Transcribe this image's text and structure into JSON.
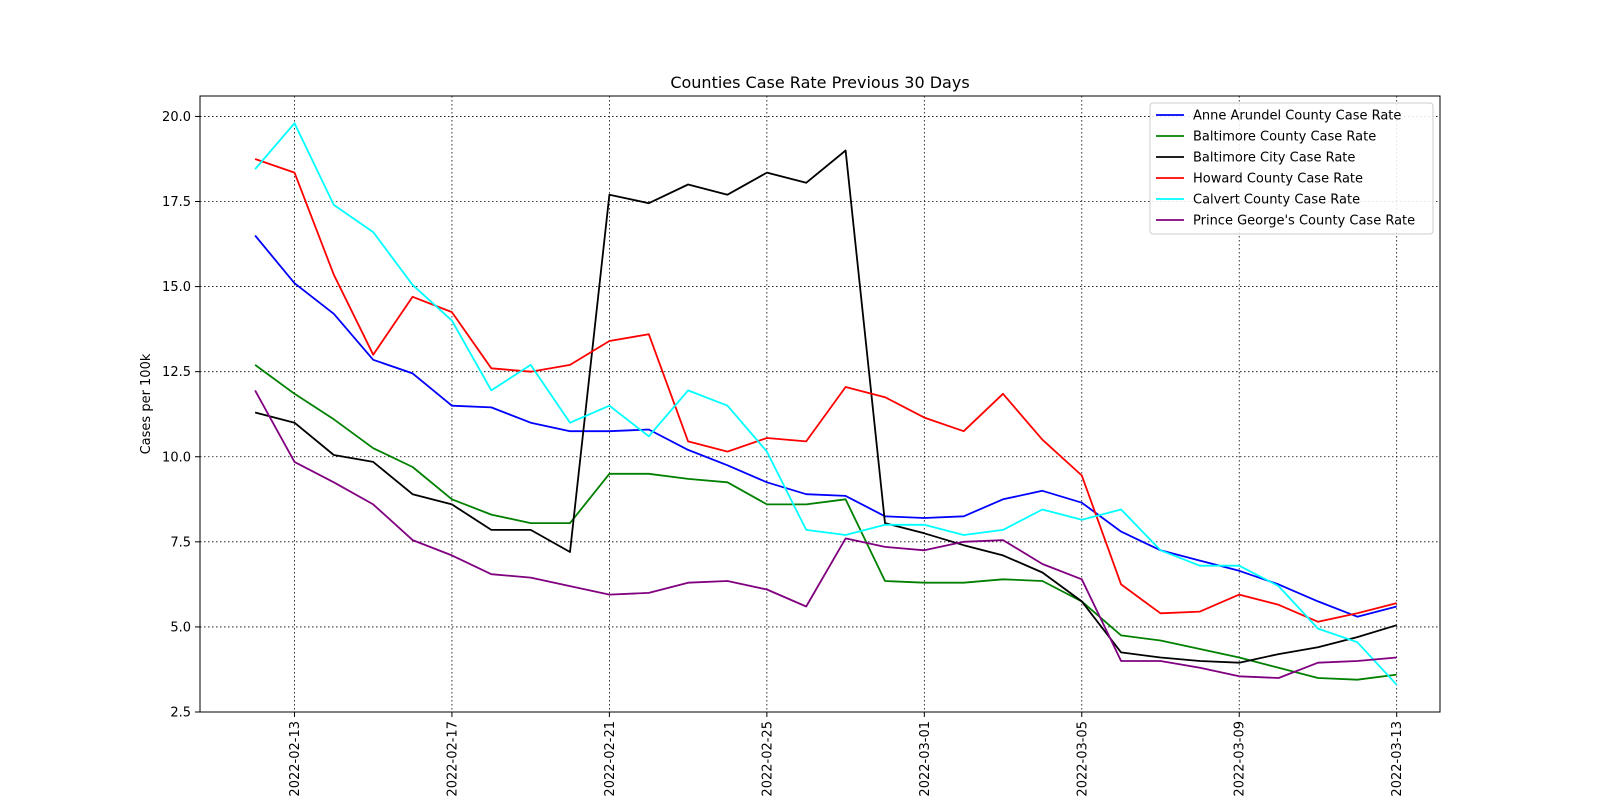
{
  "chart_data": {
    "type": "line",
    "title": "Counties Case Rate Previous 30 Days",
    "xlabel": "",
    "ylabel": "Cases per 100k",
    "x": [
      "2022-02-12",
      "2022-02-13",
      "2022-02-14",
      "2022-02-15",
      "2022-02-16",
      "2022-02-17",
      "2022-02-18",
      "2022-02-19",
      "2022-02-20",
      "2022-02-21",
      "2022-02-22",
      "2022-02-23",
      "2022-02-24",
      "2022-02-25",
      "2022-02-26",
      "2022-02-27",
      "2022-02-28",
      "2022-03-01",
      "2022-03-02",
      "2022-03-03",
      "2022-03-04",
      "2022-03-05",
      "2022-03-06",
      "2022-03-07",
      "2022-03-08",
      "2022-03-09",
      "2022-03-10",
      "2022-03-11",
      "2022-03-12",
      "2022-03-13"
    ],
    "x_ticks": [
      "2022-02-13",
      "2022-02-17",
      "2022-02-21",
      "2022-02-25",
      "2022-03-01",
      "2022-03-05",
      "2022-03-09",
      "2022-03-13"
    ],
    "x_range": [
      "2022-02-10.6",
      "2022-03-14.1"
    ],
    "ylim": [
      2.5,
      20.6
    ],
    "y_ticks": [
      "2.5",
      "5.0",
      "7.5",
      "10.0",
      "12.5",
      "15.0",
      "17.5",
      "20.0"
    ],
    "grid": true,
    "grid_style": "dotted",
    "legend_position": "top-right",
    "series": [
      {
        "name": "Anne Arundel County Case Rate",
        "color": "#0000ff",
        "values": [
          16.5,
          15.1,
          14.2,
          12.85,
          12.45,
          11.5,
          11.45,
          11.0,
          10.75,
          10.75,
          10.8,
          10.2,
          9.75,
          9.25,
          8.9,
          8.85,
          8.25,
          8.2,
          8.25,
          8.75,
          9.0,
          8.65,
          7.8,
          7.25,
          6.95,
          6.65,
          6.25,
          5.75,
          5.3,
          5.6
        ]
      },
      {
        "name": "Baltimore County Case Rate",
        "color": "#008000",
        "values": [
          12.7,
          11.85,
          11.1,
          10.25,
          9.7,
          8.75,
          8.3,
          8.05,
          8.05,
          9.5,
          9.5,
          9.35,
          9.25,
          8.6,
          8.6,
          8.75,
          6.35,
          6.3,
          6.3,
          6.4,
          6.35,
          5.75,
          4.75,
          4.6,
          4.35,
          4.1,
          3.8,
          3.5,
          3.45,
          3.6
        ]
      },
      {
        "name": "Baltimore City Case Rate",
        "color": "#000000",
        "values": [
          11.3,
          11.0,
          10.05,
          9.85,
          8.9,
          8.6,
          7.85,
          7.85,
          7.2,
          17.7,
          17.45,
          18.0,
          17.7,
          18.35,
          18.05,
          19.0,
          8.05,
          7.75,
          7.4,
          7.1,
          6.6,
          5.75,
          4.25,
          4.1,
          4.0,
          3.95,
          4.2,
          4.4,
          4.7,
          5.05
        ]
      },
      {
        "name": "Howard County Case Rate",
        "color": "#ff0000",
        "values": [
          18.75,
          18.35,
          15.35,
          13.0,
          14.7,
          14.25,
          12.6,
          12.5,
          12.7,
          13.4,
          13.6,
          10.45,
          10.15,
          10.55,
          10.45,
          12.05,
          11.75,
          11.15,
          10.75,
          11.85,
          10.5,
          9.45,
          6.25,
          5.4,
          5.45,
          5.95,
          5.65,
          5.15,
          5.4,
          5.7
        ]
      },
      {
        "name": "Calvert County Case Rate",
        "color": "#00ffff",
        "values": [
          18.45,
          19.8,
          17.4,
          16.6,
          15.05,
          14.0,
          11.95,
          12.7,
          11.0,
          11.5,
          10.6,
          11.95,
          11.5,
          10.15,
          7.85,
          7.7,
          8.0,
          8.0,
          7.7,
          7.85,
          8.45,
          8.15,
          8.45,
          7.25,
          6.8,
          6.8,
          6.2,
          4.95,
          4.55,
          3.3
        ]
      },
      {
        "name": "Prince George's County Case Rate",
        "color": "#800080",
        "values": [
          11.95,
          9.85,
          9.25,
          8.6,
          7.55,
          7.1,
          6.55,
          6.45,
          6.2,
          5.95,
          6.0,
          6.3,
          6.35,
          6.1,
          5.6,
          7.6,
          7.35,
          7.25,
          7.5,
          7.55,
          6.85,
          6.4,
          4.0,
          4.0,
          3.8,
          3.55,
          3.5,
          3.95,
          4.0,
          4.1
        ]
      }
    ]
  }
}
